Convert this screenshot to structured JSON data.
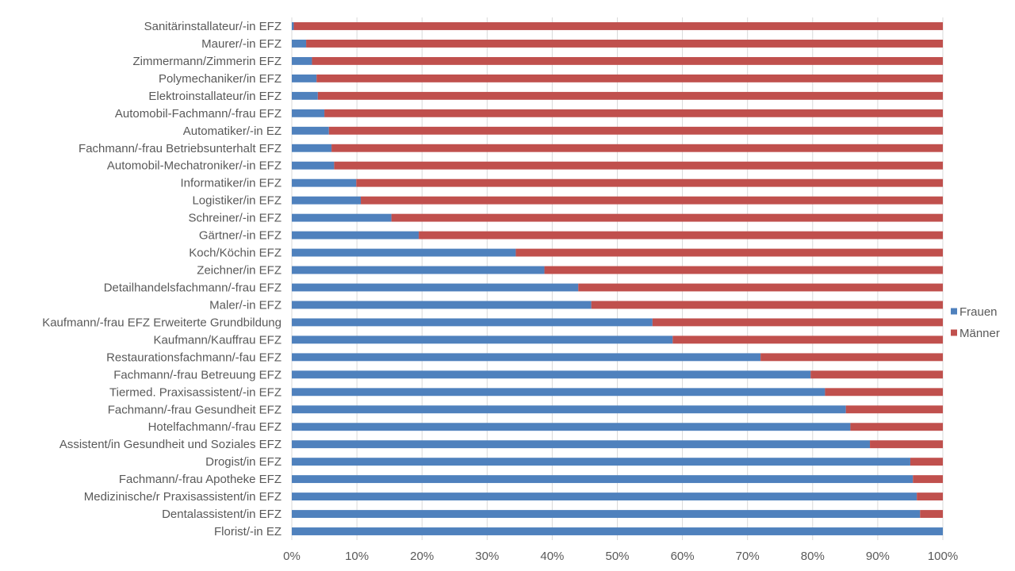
{
  "chart_data": {
    "type": "bar",
    "orientation": "horizontal",
    "stacked": "percent",
    "title": "",
    "xlabel": "",
    "ylabel": "",
    "xlim": [
      0,
      100
    ],
    "x_ticks": [
      "0%",
      "10%",
      "20%",
      "30%",
      "40%",
      "50%",
      "60%",
      "70%",
      "80%",
      "90%",
      "100%"
    ],
    "grid": true,
    "legend_position": "right",
    "categories": [
      "Sanitärinstallateur/-in EFZ",
      "Maurer/-in EFZ",
      "Zimmermann/Zimmerin EFZ",
      "Polymechaniker/in EFZ",
      "Elektroinstallateur/in EFZ",
      "Automobil-Fachmann/-frau EFZ",
      "Automatiker/-in EZ",
      "Fachmann/-frau Betriebsunterhalt EFZ",
      "Automobil-Mechatroniker/-in EFZ",
      "Informatiker/in EFZ",
      "Logistiker/in EFZ",
      "Schreiner/-in EFZ",
      "Gärtner/-in EFZ",
      "Koch/Köchin EFZ",
      "Zeichner/in EFZ",
      "Detailhandelsfachmann/-frau EFZ",
      "Maler/-in EFZ",
      "Kaufmann/-frau EFZ Erweiterte Grundbildung",
      "Kaufmann/Kauffrau EFZ",
      "Restaurationsfachmann/-fau EFZ",
      "Fachmann/-frau Betreuung EFZ",
      "Tiermed. Praxisassistent/-in EFZ",
      "Fachmann/-frau Gesundheit EFZ",
      "Hotelfachmann/-frau EFZ",
      "Assistent/in Gesundheit und Soziales EFZ",
      "Drogist/in EFZ",
      "Fachmann/-frau Apotheke EFZ",
      "Medizinische/r Praxisassistent/in EFZ",
      "Dentalassistent/in EFZ",
      "Florist/-in EZ"
    ],
    "series": [
      {
        "name": "Frauen",
        "color": "#4f81bd",
        "values": [
          0.3,
          2.2,
          3.1,
          3.8,
          4.0,
          5.0,
          5.7,
          6.1,
          6.5,
          9.9,
          10.6,
          15.3,
          19.5,
          34.4,
          38.8,
          44.0,
          46.0,
          55.4,
          58.5,
          72.0,
          79.7,
          81.9,
          85.1,
          85.8,
          88.8,
          95.0,
          95.4,
          96.0,
          96.5,
          100.0
        ]
      },
      {
        "name": "Männer",
        "color": "#c0504d",
        "values": [
          99.7,
          97.8,
          96.9,
          96.2,
          96.0,
          95.0,
          94.3,
          93.9,
          93.5,
          90.1,
          89.4,
          84.7,
          80.5,
          65.6,
          61.2,
          56.0,
          54.0,
          44.6,
          41.5,
          28.0,
          20.3,
          18.1,
          14.9,
          14.2,
          11.2,
          5.0,
          4.6,
          4.0,
          3.5,
          0.0
        ]
      }
    ]
  }
}
